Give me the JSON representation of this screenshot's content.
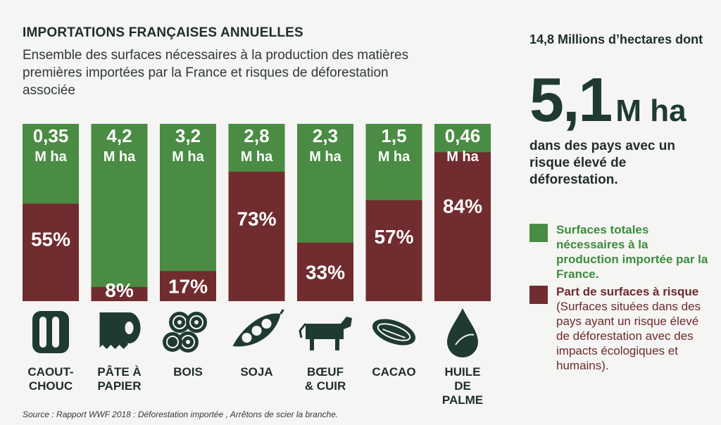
{
  "title": "IMPORTATIONS FRANÇAISES ANNUELLES",
  "subtitle": "Ensemble des surfaces nécessaires à la production des matières premières importées par la France et risques de déforestation associée",
  "colors": {
    "total": "#4a8c43",
    "risk": "#712c2f",
    "text": "#1f2d2a"
  },
  "chart_data": {
    "type": "bar",
    "stacked": true,
    "unit": "M ha",
    "categories": [
      {
        "label_lines": [
          "CAOUT-",
          "CHOUC"
        ],
        "icon": "tire-icon"
      },
      {
        "label_lines": [
          "PÂTE À",
          "PAPIER"
        ],
        "icon": "paper-roll-icon"
      },
      {
        "label_lines": [
          "BOIS"
        ],
        "icon": "logs-icon"
      },
      {
        "label_lines": [
          "SOJA"
        ],
        "icon": "soy-pod-icon"
      },
      {
        "label_lines": [
          "BŒUF",
          "& CUIR"
        ],
        "icon": "cow-icon"
      },
      {
        "label_lines": [
          "CACAO"
        ],
        "icon": "cocoa-pod-icon"
      },
      {
        "label_lines": [
          "HUILE",
          "DE",
          "PALME"
        ],
        "icon": "oil-drop-icon"
      }
    ],
    "total_labels": [
      "0,35",
      "4,2",
      "3,2",
      "2,8",
      "2,3",
      "1,5",
      "0,46"
    ],
    "risk_labels": [
      "55%",
      "8%",
      "17%",
      "73%",
      "33%",
      "57%",
      "84%"
    ],
    "total_mha": [
      0.35,
      4.2,
      3.2,
      2.8,
      2.3,
      1.5,
      0.46
    ],
    "risk_share_pct": [
      55,
      8,
      17,
      73,
      33,
      57,
      84
    ],
    "series": [
      {
        "name": "Surfaces totales nécessaires à la production importée par la France.",
        "color": "#4a8c43"
      },
      {
        "name": "Part de surfaces à risque",
        "color": "#712c2f"
      }
    ]
  },
  "summary": {
    "total_line": "14,8 Millions d’hectares dont",
    "big_number": "5,1",
    "big_unit": "M ha",
    "description": "dans des pays avec un risque élevé de déforestation."
  },
  "legend": {
    "total_label": "Surfaces totales nécessaires à la production importée par la France.",
    "risk_label": "Part de surfaces à risque",
    "risk_detail": "(Surfaces situées dans des pays ayant un risque élevé de déforestation avec des impacts écologiques et humains)."
  },
  "source": "Source : Rapport WWF 2018 : Déforestation importée , Arrêtons de scier la branche."
}
